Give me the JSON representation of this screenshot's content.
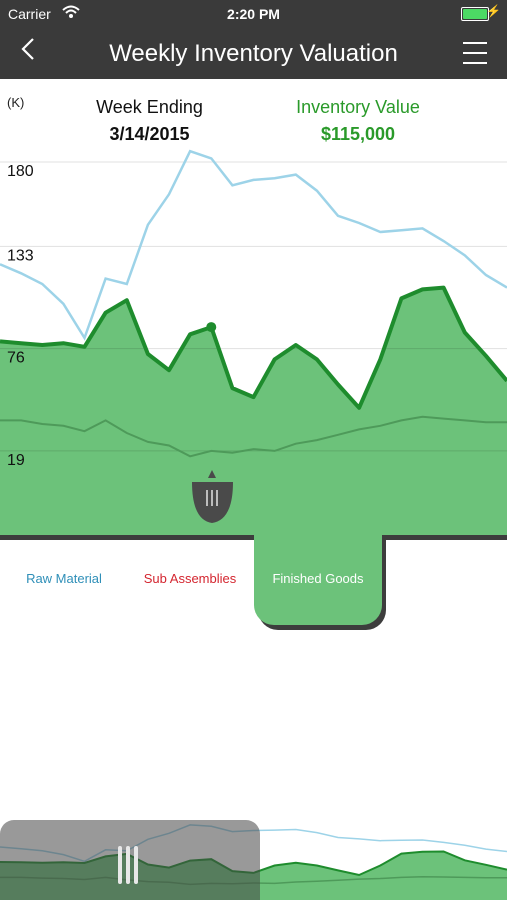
{
  "status_bar": {
    "carrier": "Carrier",
    "time": "2:20 PM"
  },
  "nav": {
    "title": "Weekly Inventory Valuation",
    "back_icon": "chevron-left-icon",
    "menu_icon": "hamburger-menu-icon"
  },
  "header": {
    "unit": "(K)",
    "week_ending_label": "Week Ending",
    "week_ending_value": "3/14/2015",
    "inventory_value_label": "Inventory Value",
    "inventory_value": "$115,000"
  },
  "tabs": [
    {
      "label": "Raw Material",
      "color": "#2f8fb8",
      "active": false
    },
    {
      "label": "Sub Assemblies",
      "color": "#d4252f",
      "active": false
    },
    {
      "label": "Finished Goods",
      "color": "#ffffff",
      "active": true
    }
  ],
  "colors": {
    "fill": "#6cc27a",
    "finished_line": "#1e8c2d",
    "raw_line": "#9dd3e8",
    "sub_line": "#4e9a5a",
    "nav_bg": "#3a3a3a"
  },
  "chart_data": {
    "type": "area",
    "ylim": [
      0,
      180
    ],
    "yticks": [
      19,
      76,
      133,
      180
    ],
    "grid": true,
    "selected_index": 10,
    "series": [
      {
        "values": [
          123,
          118,
          112,
          101,
          82,
          115,
          112,
          145,
          162,
          186,
          182,
          167,
          170,
          171,
          173,
          164,
          150,
          146,
          141,
          142,
          143,
          136,
          128,
          117,
          110
        ]
      },
      {
        "values": [
          80,
          79,
          78,
          79,
          77,
          96,
          103,
          73,
          64,
          84,
          88,
          54,
          49,
          70,
          78,
          70,
          56,
          43,
          70,
          104,
          109,
          110,
          85,
          72,
          58
        ]
      },
      {
        "values": [
          36,
          36,
          34,
          33,
          30,
          36,
          29,
          24,
          22,
          16,
          19,
          18,
          20,
          19,
          23,
          25,
          28,
          31,
          33,
          36,
          38,
          37,
          36,
          35,
          35
        ]
      }
    ]
  }
}
